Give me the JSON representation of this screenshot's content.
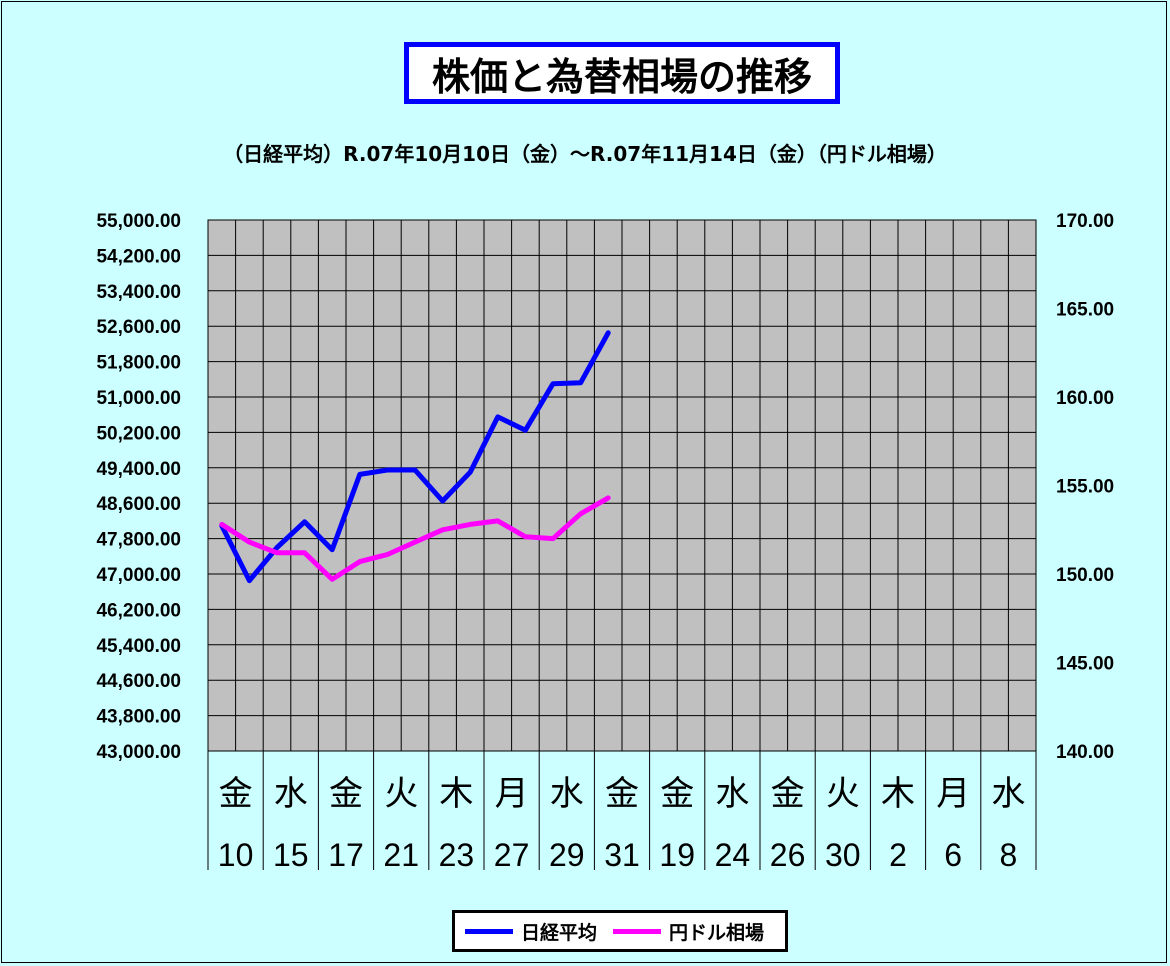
{
  "colors": {
    "background": "#ccffff",
    "plot_area": "#c0c0c0",
    "title_border": "#0000ff"
  },
  "chart_data": {
    "type": "line",
    "title": "株価と為替相場の推移",
    "subtitle": "（日経平均）R.07年10月10日（金）～R.07年11月14日（金）（円ドル相場）",
    "x_weekday_labels": [
      "金",
      "",
      "水",
      "",
      "金",
      "",
      "火",
      "",
      "木",
      "",
      "月",
      "",
      "水",
      "",
      "金",
      "",
      "金",
      "",
      "水",
      "",
      "金",
      "",
      "火",
      "",
      "木",
      "",
      "月",
      "",
      "水",
      ""
    ],
    "x_day_labels": [
      "10",
      "",
      "15",
      "",
      "17",
      "",
      "21",
      "",
      "23",
      "",
      "27",
      "",
      "29",
      "",
      "31",
      "",
      "19",
      "",
      "24",
      "",
      "26",
      "",
      "30",
      "",
      "2",
      "",
      "6",
      "",
      "8",
      ""
    ],
    "y_left": {
      "min": 43000,
      "max": 55000,
      "ticks": [
        "55,000.00",
        "54,200.00",
        "53,400.00",
        "52,600.00",
        "51,800.00",
        "51,000.00",
        "50,200.00",
        "49,400.00",
        "48,600.00",
        "47,800.00",
        "47,000.00",
        "46,200.00",
        "45,400.00",
        "44,600.00",
        "43,800.00",
        "43,000.00"
      ]
    },
    "y_right": {
      "min": 140,
      "max": 170,
      "ticks": [
        "170.00",
        "165.00",
        "160.00",
        "155.00",
        "150.00",
        "145.00",
        "140.00"
      ]
    },
    "grid": true,
    "legend_position": "bottom",
    "series": [
      {
        "name": "日経平均",
        "color": "#0000ff",
        "axis": "left",
        "values": [
          48090,
          46850,
          47600,
          48180,
          47550,
          49250,
          49350,
          49350,
          48650,
          49300,
          50550,
          50250,
          51300,
          51320,
          52450
        ]
      },
      {
        "name": "円ドル相場",
        "color": "#ff00ff",
        "axis": "right",
        "values": [
          152.8,
          151.8,
          151.2,
          151.2,
          149.7,
          150.7,
          151.1,
          151.8,
          152.5,
          152.8,
          153.0,
          152.1,
          152.0,
          153.4,
          154.3
        ]
      }
    ]
  }
}
